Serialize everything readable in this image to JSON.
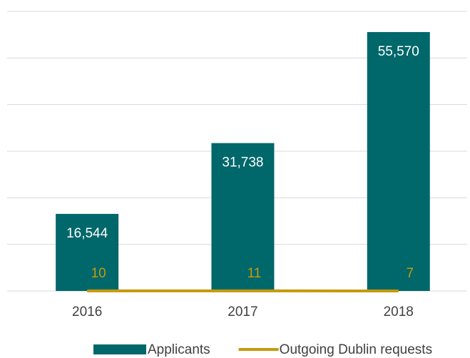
{
  "chart_data": {
    "type": "bar",
    "categories": [
      "2016",
      "2017",
      "2018"
    ],
    "series": [
      {
        "name": "Applicants",
        "type": "bar",
        "color": "#00676a",
        "values": [
          16544,
          31738,
          55570
        ],
        "value_labels": [
          "16,544",
          "31,738",
          "55,570"
        ],
        "label_color": "#ffffff"
      },
      {
        "name": "Outgoing Dublin requests",
        "type": "line",
        "color": "#c59a0c",
        "values": [
          10,
          11,
          7
        ]
      }
    ],
    "ylim": [
      0,
      60000
    ],
    "yticks": [
      0,
      10000,
      20000,
      30000,
      40000,
      50000,
      60000
    ],
    "grid": true,
    "legend": "bottom"
  }
}
